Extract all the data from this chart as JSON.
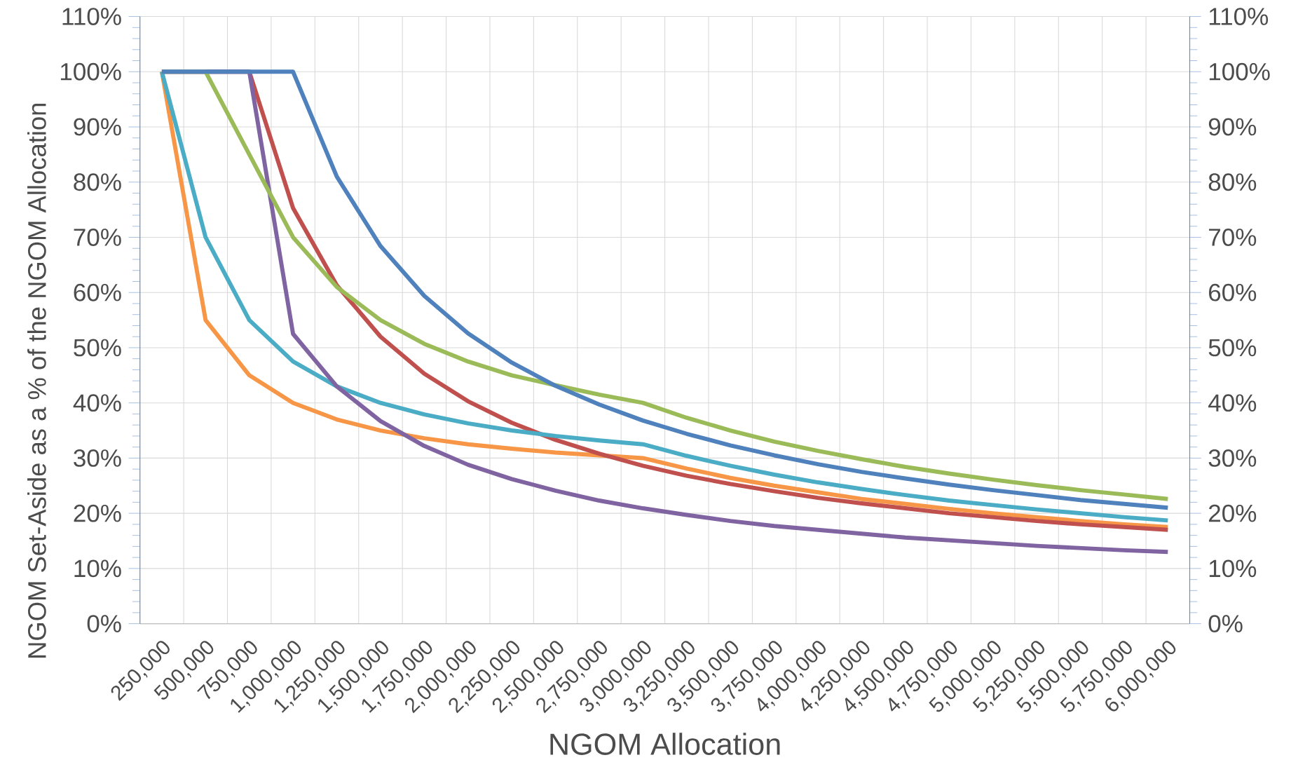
{
  "chart_data": {
    "type": "line",
    "xlabel": "NGOM Allocation",
    "ylabel": "NGOM Set-Aside as a % of the NGOM Allocation",
    "categories": [
      "250,000",
      "500,000",
      "750,000",
      "1,000,000",
      "1,250,000",
      "1,500,000",
      "1,750,000",
      "2,000,000",
      "2,250,000",
      "2,500,000",
      "2,750,000",
      "3,000,000",
      "3,250,000",
      "3,500,000",
      "3,750,000",
      "4,000,000",
      "4,250,000",
      "4,500,000",
      "4,750,000",
      "5,000,000",
      "5,250,000",
      "5,500,000",
      "5,750,000",
      "6,000,000"
    ],
    "series": [
      {
        "color": "#f79646",
        "values": [
          100,
          55,
          45,
          40,
          37,
          35,
          33.6,
          32.5,
          31.7,
          31,
          30.5,
          30,
          28.1,
          26.4,
          25,
          23.8,
          22.6,
          21.7,
          20.8,
          20,
          19.3,
          18.6,
          18,
          17.5
        ]
      },
      {
        "color": "#c0504d",
        "values": [
          100,
          null,
          100,
          75.3,
          61.3,
          52,
          45.3,
          40.3,
          36.4,
          33.3,
          30.8,
          28.6,
          26.8,
          25.3,
          24,
          22.8,
          21.8,
          20.9,
          20,
          19.3,
          18.6,
          18,
          17.5,
          17
        ]
      },
      {
        "color": "#4bacc6",
        "values": [
          100,
          70,
          55,
          47.5,
          43,
          40,
          37.9,
          36.3,
          35,
          34,
          33.2,
          32.5,
          30.4,
          28.6,
          27,
          25.6,
          24.4,
          23.3,
          22.3,
          21.5,
          20.7,
          20,
          19.3,
          18.7
        ]
      },
      {
        "color": "#8064a2",
        "values": [
          100,
          100,
          100,
          52.5,
          43,
          36.7,
          32.2,
          28.8,
          26.2,
          24.1,
          22.3,
          20.9,
          19.7,
          18.6,
          17.7,
          17,
          16.3,
          15.6,
          15.1,
          14.6,
          14.1,
          13.7,
          13.3,
          13
        ]
      },
      {
        "color": "#9bbb59",
        "values": [
          100,
          100,
          85,
          70,
          61,
          55,
          50.7,
          47.5,
          45,
          43.2,
          41.5,
          40,
          37.3,
          35,
          33,
          31.3,
          29.8,
          28.4,
          27.2,
          26.1,
          25.1,
          24.2,
          23.4,
          22.6
        ]
      },
      {
        "color": "#4f81bd",
        "values": [
          100,
          100,
          100,
          100,
          81,
          68.4,
          59.4,
          52.6,
          47.3,
          43.1,
          39.7,
          36.8,
          34.4,
          32.3,
          30.5,
          28.9,
          27.5,
          26.3,
          25.2,
          24.2,
          23.3,
          22.4,
          21.7,
          21
        ]
      }
    ],
    "ylim": [
      0,
      110
    ],
    "yticks": [
      {
        "value": 0,
        "label": "0%"
      },
      {
        "value": 10,
        "label": "10%"
      },
      {
        "value": 20,
        "label": "20%"
      },
      {
        "value": 30,
        "label": "30%"
      },
      {
        "value": 40,
        "label": "40%"
      },
      {
        "value": 50,
        "label": "50%"
      },
      {
        "value": 60,
        "label": "60%"
      },
      {
        "value": 70,
        "label": "70%"
      },
      {
        "value": 80,
        "label": "80%"
      },
      {
        "value": 90,
        "label": "90%"
      },
      {
        "value": 100,
        "label": "100%"
      },
      {
        "value": 110,
        "label": "110%"
      }
    ],
    "y2lim": [
      0,
      110
    ],
    "y2ticks": [
      {
        "value": 0,
        "label": "0%"
      },
      {
        "value": 10,
        "label": "10%"
      },
      {
        "value": 20,
        "label": "20%"
      },
      {
        "value": 30,
        "label": "30%"
      },
      {
        "value": 40,
        "label": "40%"
      },
      {
        "value": 50,
        "label": "50%"
      },
      {
        "value": 60,
        "label": "60%"
      },
      {
        "value": 70,
        "label": "70%"
      },
      {
        "value": 80,
        "label": "80%"
      },
      {
        "value": 90,
        "label": "90%"
      },
      {
        "value": 100,
        "label": "100%"
      },
      {
        "value": 110,
        "label": "110%"
      }
    ],
    "grid": true,
    "marker": "none",
    "line_style": "solid"
  }
}
